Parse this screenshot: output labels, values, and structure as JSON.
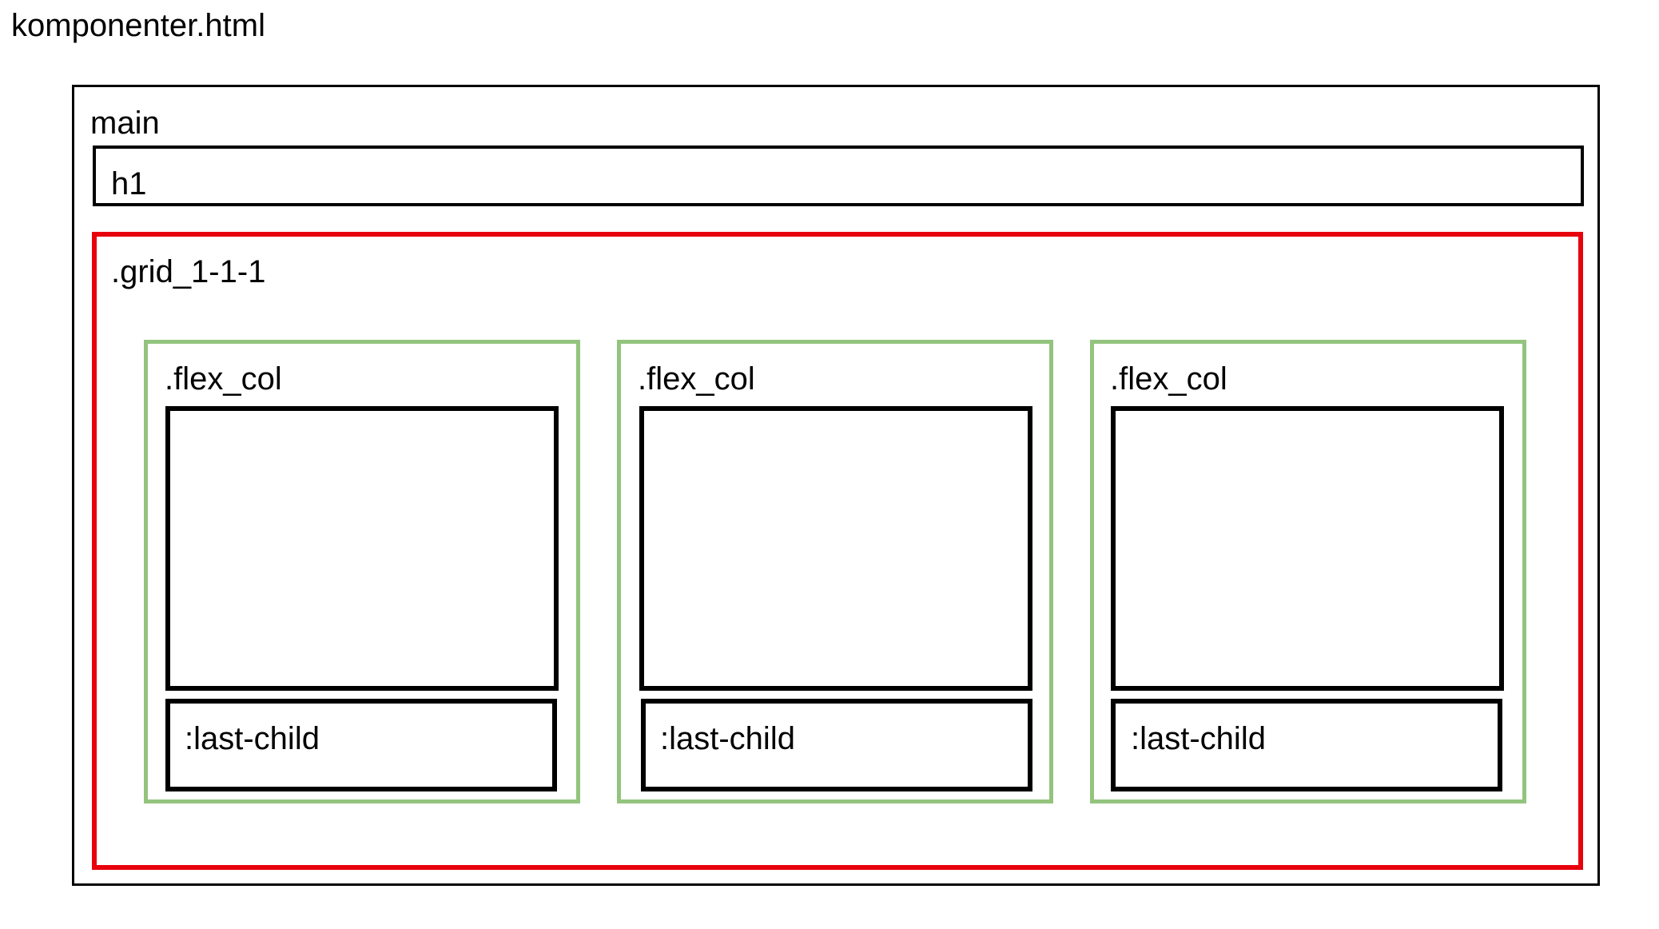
{
  "title": "komponenter.html",
  "main": {
    "label": "main",
    "h1": {
      "label": "h1"
    },
    "grid": {
      "label": ".grid_1-1-1",
      "columns": [
        {
          "label": ".flex_col",
          "last_child_label": ":last-child"
        },
        {
          "label": ".flex_col",
          "last_child_label": ":last-child"
        },
        {
          "label": ".flex_col",
          "last_child_label": ":last-child"
        }
      ]
    }
  },
  "colors": {
    "grid_border": "#e8000d",
    "flex_col_border": "#93c47d",
    "element_border": "#000000"
  }
}
